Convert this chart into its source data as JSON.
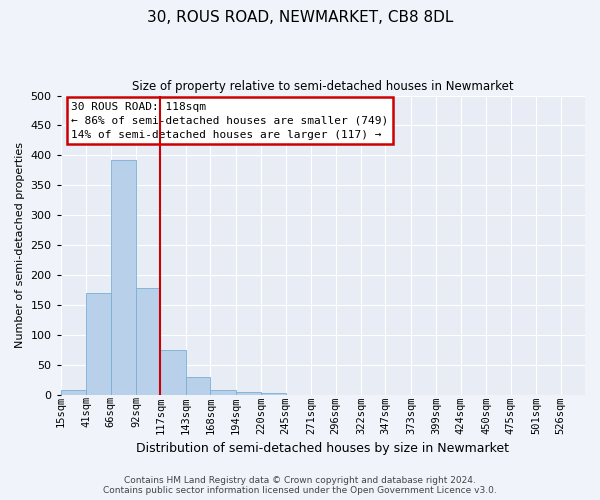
{
  "title": "30, ROUS ROAD, NEWMARKET, CB8 8DL",
  "subtitle": "Size of property relative to semi-detached houses in Newmarket",
  "xlabel": "Distribution of semi-detached houses by size in Newmarket",
  "ylabel": "Number of semi-detached properties",
  "bar_values": [
    8,
    170,
    392,
    178,
    75,
    29,
    8,
    4,
    3,
    0,
    0,
    0,
    0,
    0,
    0,
    0,
    0,
    0,
    0,
    0,
    0
  ],
  "bin_labels": [
    "15sqm",
    "41sqm",
    "66sqm",
    "92sqm",
    "117sqm",
    "143sqm",
    "168sqm",
    "194sqm",
    "220sqm",
    "245sqm",
    "271sqm",
    "296sqm",
    "322sqm",
    "347sqm",
    "373sqm",
    "399sqm",
    "424sqm",
    "450sqm",
    "475sqm",
    "501sqm",
    "526sqm"
  ],
  "bin_edges": [
    15,
    41,
    66,
    92,
    117,
    143,
    168,
    194,
    220,
    245,
    271,
    296,
    322,
    347,
    373,
    399,
    424,
    450,
    475,
    501,
    526,
    551
  ],
  "bar_color": "#b8d0ea",
  "bar_edge_color": "#7aafd4",
  "vline_x": 117,
  "vline_color": "#cc0000",
  "annotation_box_color": "#cc0000",
  "annotation_title": "30 ROUS ROAD: 118sqm",
  "annotation_line1": "← 86% of semi-detached houses are smaller (749)",
  "annotation_line2": "14% of semi-detached houses are larger (117) →",
  "ylim": [
    0,
    500
  ],
  "yticks": [
    0,
    50,
    100,
    150,
    200,
    250,
    300,
    350,
    400,
    450,
    500
  ],
  "footer_line1": "Contains HM Land Registry data © Crown copyright and database right 2024.",
  "footer_line2": "Contains public sector information licensed under the Open Government Licence v3.0.",
  "bg_color": "#f0f4fa",
  "plot_bg_color": "#e8edf5",
  "title_fontsize": 11,
  "subtitle_fontsize": 8.5,
  "ylabel_fontsize": 8,
  "xlabel_fontsize": 9,
  "ytick_fontsize": 8,
  "xtick_fontsize": 7.5,
  "footer_fontsize": 6.5,
  "annot_fontsize": 8
}
